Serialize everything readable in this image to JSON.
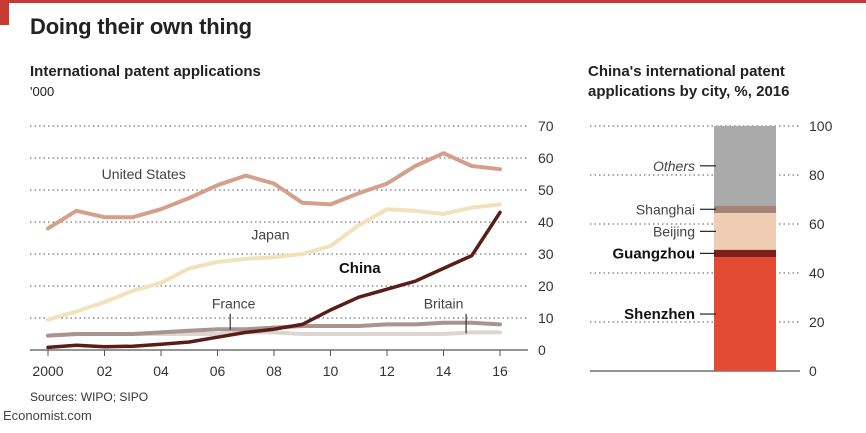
{
  "header": {
    "title": "Doing their own thing"
  },
  "footer": {
    "source": "Sources: WIPO; SIPO",
    "credit": "Economist.com"
  },
  "chart_data": [
    {
      "type": "line",
      "title": "International patent applications",
      "ylabel": "'000",
      "x": [
        2000,
        2001,
        2002,
        2003,
        2004,
        2005,
        2006,
        2007,
        2008,
        2009,
        2010,
        2011,
        2012,
        2013,
        2014,
        2015,
        2016
      ],
      "xticks": [
        2000,
        2002,
        2004,
        2006,
        2008,
        2010,
        2012,
        2014,
        2016
      ],
      "xtick_labels": [
        "2000",
        "02",
        "04",
        "06",
        "08",
        "10",
        "12",
        "14",
        "16"
      ],
      "yticks": [
        0,
        10,
        20,
        30,
        40,
        50,
        60,
        70
      ],
      "ylim": [
        0,
        70
      ],
      "grid": true,
      "series": [
        {
          "name": "United States",
          "color": "#d4a08c",
          "values": [
            38,
            43.5,
            41.5,
            41.5,
            44,
            47.5,
            51.5,
            54.5,
            52,
            46,
            45.5,
            49,
            52,
            57.5,
            61.5,
            57.5,
            56.5
          ]
        },
        {
          "name": "Japan",
          "color": "#f2e2bc",
          "values": [
            9.5,
            12,
            15,
            18.5,
            21,
            25.5,
            27.5,
            28.5,
            29,
            30,
            32.5,
            39,
            44,
            43.5,
            42.5,
            44.5,
            45.5
          ]
        },
        {
          "name": "China",
          "color": "#5a1d18",
          "values": [
            0.8,
            1.5,
            1,
            1.2,
            1.8,
            2.5,
            4,
            5.5,
            6.5,
            8,
            12.5,
            16.5,
            19,
            21.5,
            25.5,
            29.5,
            43
          ]
        },
        {
          "name": "France",
          "color": "#a8958f",
          "values": [
            4.5,
            5,
            5,
            5,
            5.5,
            6,
            6.5,
            6.5,
            7,
            7.5,
            7.5,
            7.5,
            8,
            8,
            8.5,
            8.5,
            8
          ]
        },
        {
          "name": "Britain",
          "color": "#ddd6d0",
          "values": [
            4.5,
            5,
            5,
            5,
            5,
            5,
            5,
            5.5,
            5.5,
            5,
            5,
            5,
            5,
            5,
            5,
            5.5,
            5.5
          ]
        }
      ]
    },
    {
      "type": "bar",
      "title": "China's international patent applications by city, %, 2016",
      "yticks": [
        0,
        20,
        40,
        60,
        80,
        100
      ],
      "ylim": [
        0,
        100
      ],
      "stacked": true,
      "segments": [
        {
          "name": "Shenzhen",
          "value": 46.5,
          "color": "#e24a31",
          "bold": true
        },
        {
          "name": "Guangzhou",
          "value": 3,
          "color": "#7c2217",
          "bold": true
        },
        {
          "name": "Beijing",
          "value": 15,
          "color": "#efcdb4",
          "bold": false
        },
        {
          "name": "Shanghai",
          "value": 3,
          "color": "#a38378",
          "bold": false
        },
        {
          "name": "Others",
          "value": 32.5,
          "color": "#aaaaaa",
          "bold": false,
          "italic": true
        }
      ]
    }
  ]
}
